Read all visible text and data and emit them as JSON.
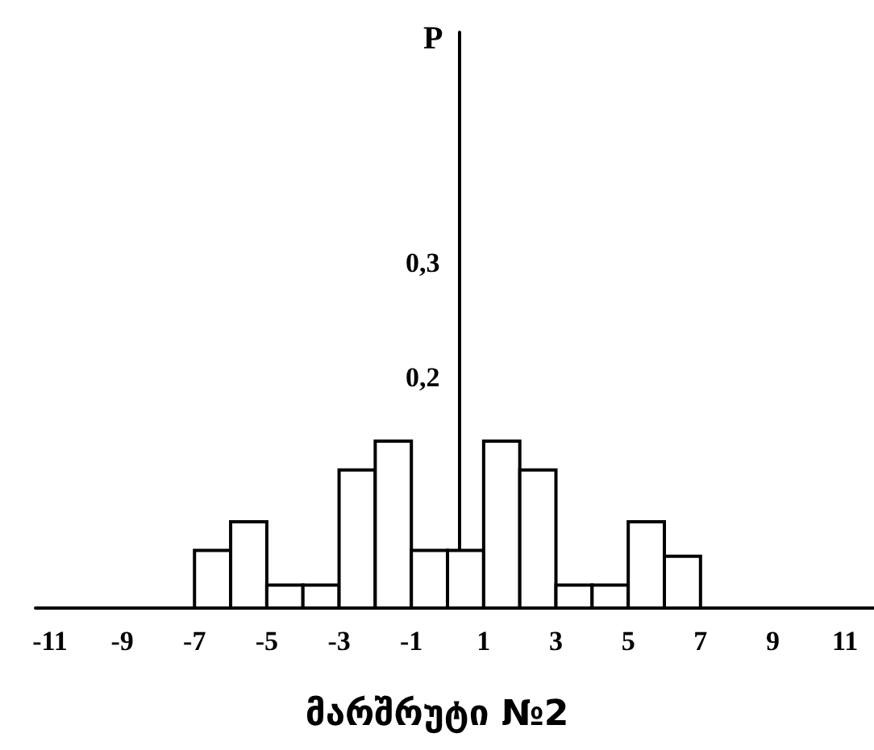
{
  "chart_data": {
    "type": "histogram",
    "title": "მარშრუტი №2",
    "ylabel": "P",
    "bins": [
      -7,
      -6,
      -5,
      -4,
      -3,
      -2,
      -1,
      0,
      1,
      2,
      3,
      4,
      5,
      6,
      7
    ],
    "values": [
      0.05,
      0.075,
      0.02,
      0.02,
      0.12,
      0.145,
      0.05,
      0.05,
      0.145,
      0.12,
      0.02,
      0.02,
      0.075,
      0.045
    ],
    "color": "#ffffff",
    "xlim": [
      -11.4,
      11.8
    ],
    "xticks": [
      -11,
      -9,
      -7,
      -5,
      -3,
      -1,
      1,
      3,
      5,
      7,
      9,
      11
    ],
    "ylim": [
      0,
      0.5
    ],
    "yticks": [
      {
        "value": 0.2,
        "label": "0,2"
      },
      {
        "value": 0.3,
        "label": "0,3"
      }
    ],
    "grid": false
  }
}
